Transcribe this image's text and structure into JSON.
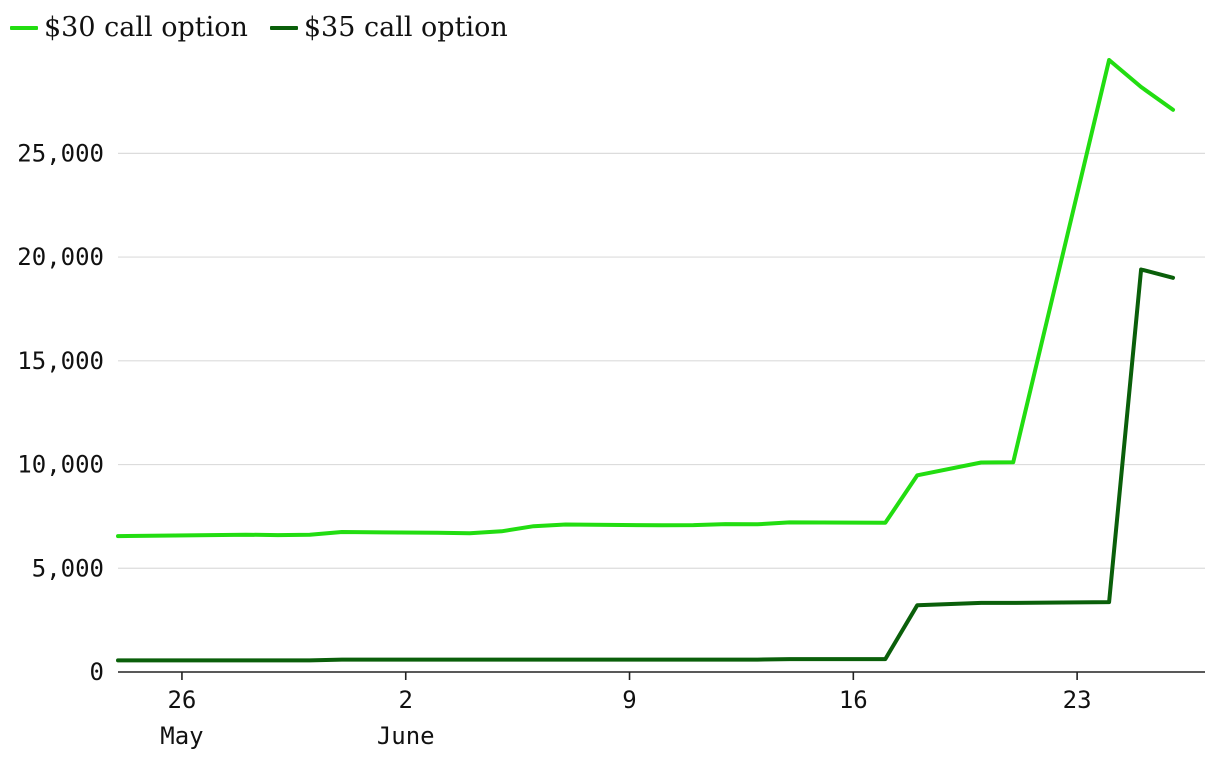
{
  "chart_data": {
    "type": "line",
    "legend": {
      "placement": "top-left"
    },
    "grid": "horizontal",
    "x_axis": {
      "min": "2024-05-24",
      "max": "2024-06-27",
      "ticks": [
        {
          "date": "2024-05-26",
          "label": "26",
          "sublabel": "May"
        },
        {
          "date": "2024-06-02",
          "label": "2",
          "sublabel": "June"
        },
        {
          "date": "2024-06-09",
          "label": "9",
          "sublabel": ""
        },
        {
          "date": "2024-06-16",
          "label": "16",
          "sublabel": ""
        },
        {
          "date": "2024-06-23",
          "label": "23",
          "sublabel": ""
        }
      ]
    },
    "y_axis": {
      "min": 0,
      "max": 29500,
      "ticks": [
        {
          "value": 0,
          "label": "0"
        },
        {
          "value": 5000,
          "label": "5,000"
        },
        {
          "value": 10000,
          "label": "10,000"
        },
        {
          "value": 15000,
          "label": "15,000"
        },
        {
          "value": 20000,
          "label": "20,000"
        },
        {
          "value": 25000,
          "label": "25,000"
        }
      ]
    },
    "series": [
      {
        "name": "$30 call option",
        "color": "#22dd11",
        "points": [
          {
            "x": "2024-05-24",
            "y": 6550
          },
          {
            "x": "2024-05-28",
            "y": 6620
          },
          {
            "x": "2024-05-29",
            "y": 6600
          },
          {
            "x": "2024-05-30",
            "y": 6620
          },
          {
            "x": "2024-05-31",
            "y": 6750
          },
          {
            "x": "2024-06-03",
            "y": 6710
          },
          {
            "x": "2024-06-04",
            "y": 6690
          },
          {
            "x": "2024-06-05",
            "y": 6780
          },
          {
            "x": "2024-06-06",
            "y": 7030
          },
          {
            "x": "2024-06-07",
            "y": 7110
          },
          {
            "x": "2024-06-10",
            "y": 7070
          },
          {
            "x": "2024-06-11",
            "y": 7080
          },
          {
            "x": "2024-06-12",
            "y": 7130
          },
          {
            "x": "2024-06-13",
            "y": 7120
          },
          {
            "x": "2024-06-14",
            "y": 7210
          },
          {
            "x": "2024-06-17",
            "y": 7190
          },
          {
            "x": "2024-06-18",
            "y": 9480
          },
          {
            "x": "2024-06-20",
            "y": 10100
          },
          {
            "x": "2024-06-21",
            "y": 10110
          },
          {
            "x": "2024-06-24",
            "y": 29500
          },
          {
            "x": "2024-06-25",
            "y": 28200
          },
          {
            "x": "2024-06-26",
            "y": 27100
          }
        ]
      },
      {
        "name": "$35 call option",
        "color": "#0a5f0a",
        "points": [
          {
            "x": "2024-05-24",
            "y": 560
          },
          {
            "x": "2024-05-30",
            "y": 560
          },
          {
            "x": "2024-05-31",
            "y": 600
          },
          {
            "x": "2024-06-07",
            "y": 600
          },
          {
            "x": "2024-06-13",
            "y": 600
          },
          {
            "x": "2024-06-14",
            "y": 620
          },
          {
            "x": "2024-06-17",
            "y": 620
          },
          {
            "x": "2024-06-18",
            "y": 3220
          },
          {
            "x": "2024-06-20",
            "y": 3330
          },
          {
            "x": "2024-06-21",
            "y": 3330
          },
          {
            "x": "2024-06-24",
            "y": 3370
          },
          {
            "x": "2024-06-25",
            "y": 19400
          },
          {
            "x": "2024-06-26",
            "y": 19000
          }
        ]
      }
    ]
  }
}
